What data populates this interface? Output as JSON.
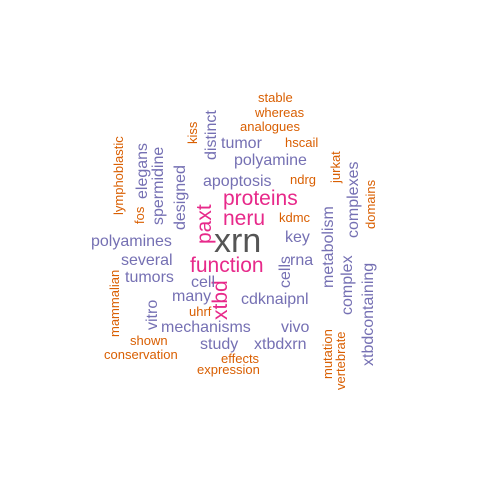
{
  "colors": {
    "background": "#ffffff",
    "gray": "#555555",
    "magenta": "#e7298a",
    "purple": "#7570b3",
    "orange": "#d95f02"
  },
  "words": [
    {
      "text": "xrn",
      "color": "gray"
    },
    {
      "text": "proteins",
      "color": "magenta"
    },
    {
      "text": "neru",
      "color": "magenta"
    },
    {
      "text": "paxt",
      "color": "magenta"
    },
    {
      "text": "function",
      "color": "magenta"
    },
    {
      "text": "xtbd",
      "color": "magenta"
    },
    {
      "text": "polyamines",
      "color": "purple"
    },
    {
      "text": "polyamine",
      "color": "purple"
    },
    {
      "text": "apoptosis",
      "color": "purple"
    },
    {
      "text": "tumor",
      "color": "purple"
    },
    {
      "text": "distinct",
      "color": "purple"
    },
    {
      "text": "elegans",
      "color": "purple"
    },
    {
      "text": "spermidine",
      "color": "purple"
    },
    {
      "text": "designed",
      "color": "purple"
    },
    {
      "text": "several",
      "color": "purple"
    },
    {
      "text": "tumors",
      "color": "purple"
    },
    {
      "text": "cell",
      "color": "purple"
    },
    {
      "text": "many",
      "color": "purple"
    },
    {
      "text": "vitro",
      "color": "purple"
    },
    {
      "text": "cdknaipnl",
      "color": "purple"
    },
    {
      "text": "rna",
      "color": "purple"
    },
    {
      "text": "key",
      "color": "purple"
    },
    {
      "text": "cells",
      "color": "purple"
    },
    {
      "text": "metabolism",
      "color": "purple"
    },
    {
      "text": "complex",
      "color": "purple"
    },
    {
      "text": "complexes",
      "color": "purple"
    },
    {
      "text": "xtbdcontaining",
      "color": "purple"
    },
    {
      "text": "mechanisms",
      "color": "purple"
    },
    {
      "text": "vivo",
      "color": "purple"
    },
    {
      "text": "study",
      "color": "purple"
    },
    {
      "text": "xtbdxrn",
      "color": "purple"
    },
    {
      "text": "stable",
      "color": "orange"
    },
    {
      "text": "whereas",
      "color": "orange"
    },
    {
      "text": "analogues",
      "color": "orange"
    },
    {
      "text": "hscail",
      "color": "orange"
    },
    {
      "text": "ndrg",
      "color": "orange"
    },
    {
      "text": "jurkat",
      "color": "orange"
    },
    {
      "text": "kiss",
      "color": "orange"
    },
    {
      "text": "lymphoblastic",
      "color": "orange"
    },
    {
      "text": "fos",
      "color": "orange"
    },
    {
      "text": "kdmc",
      "color": "orange"
    },
    {
      "text": "domains",
      "color": "orange"
    },
    {
      "text": "mammalian",
      "color": "orange"
    },
    {
      "text": "uhrf",
      "color": "orange"
    },
    {
      "text": "shown",
      "color": "orange"
    },
    {
      "text": "conservation",
      "color": "orange"
    },
    {
      "text": "effects",
      "color": "orange"
    },
    {
      "text": "expression",
      "color": "orange"
    },
    {
      "text": "mutation",
      "color": "orange"
    },
    {
      "text": "vertebrate",
      "color": "orange"
    }
  ]
}
